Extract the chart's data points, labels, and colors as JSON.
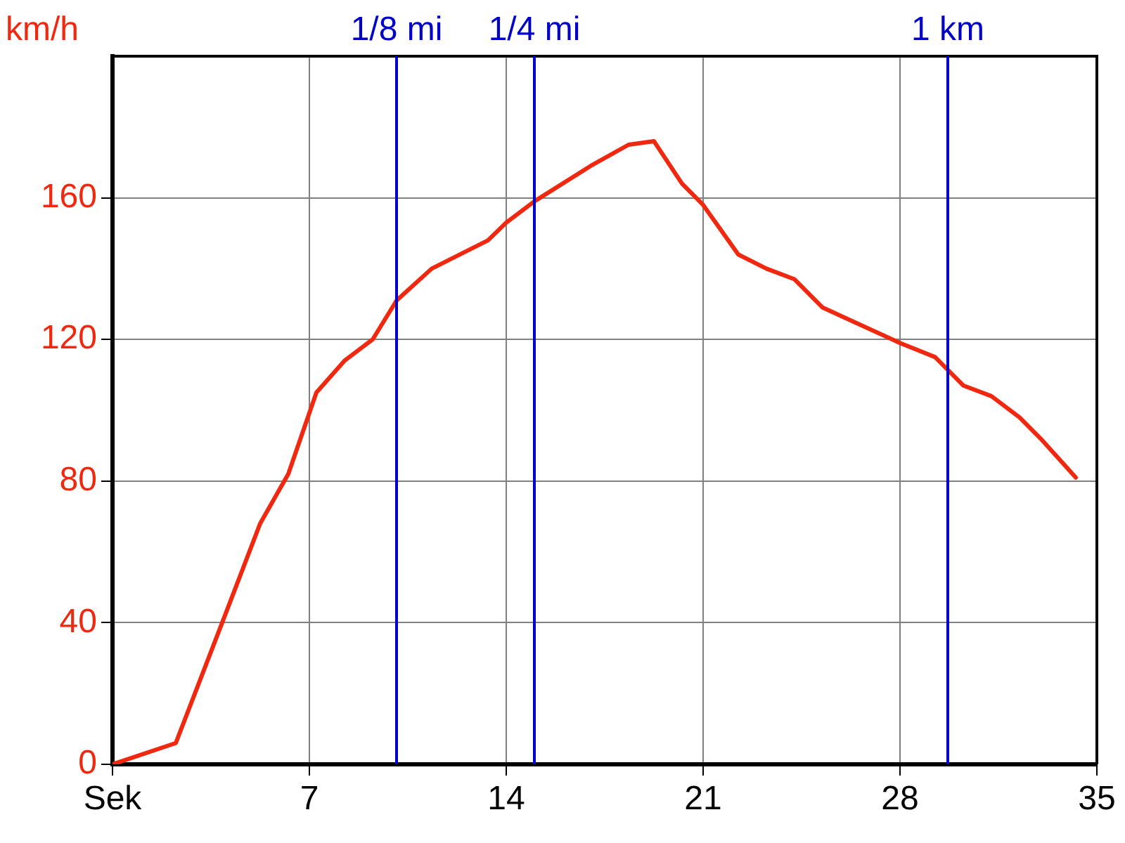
{
  "chart_data": {
    "type": "line",
    "ylabel": "km/h",
    "x": [
      0,
      2.25,
      3.9,
      5.25,
      6.25,
      7.25,
      8.25,
      9.25,
      10.1,
      11.35,
      13.35,
      14,
      15,
      17,
      18.35,
      19.25,
      20.25,
      21,
      22.25,
      23.25,
      24.25,
      25.25,
      26.35,
      28,
      29.25,
      30.25,
      31.25,
      32.25,
      33,
      34.25
    ],
    "series": [
      {
        "color": "#f02810",
        "values": [
          0,
          6,
          40,
          68,
          82,
          105,
          114,
          120,
          131,
          140,
          148,
          153,
          159,
          169,
          175,
          176,
          164,
          158,
          144,
          140,
          137,
          129,
          125,
          119,
          115,
          107,
          104,
          98,
          92,
          81
        ]
      }
    ],
    "xlim": [
      0,
      35
    ],
    "xticks": [
      {
        "value": 0,
        "label": "Sek"
      },
      7,
      14,
      21,
      28,
      35
    ],
    "ylim": [
      0,
      200
    ],
    "yticks": [
      0,
      40,
      80,
      120,
      160
    ],
    "ref_lines": [
      {
        "axis": "x",
        "value": 10.1,
        "label": "1/8 mi",
        "color": "#0000c8"
      },
      {
        "axis": "x",
        "value": 15,
        "label": "1/4 mi",
        "color": "#0000c8"
      },
      {
        "axis": "x",
        "value": 29.7,
        "label": "1 km",
        "color": "#0000c8"
      }
    ],
    "grid": true,
    "legend": false,
    "marker": "none",
    "line_style": "solid"
  }
}
